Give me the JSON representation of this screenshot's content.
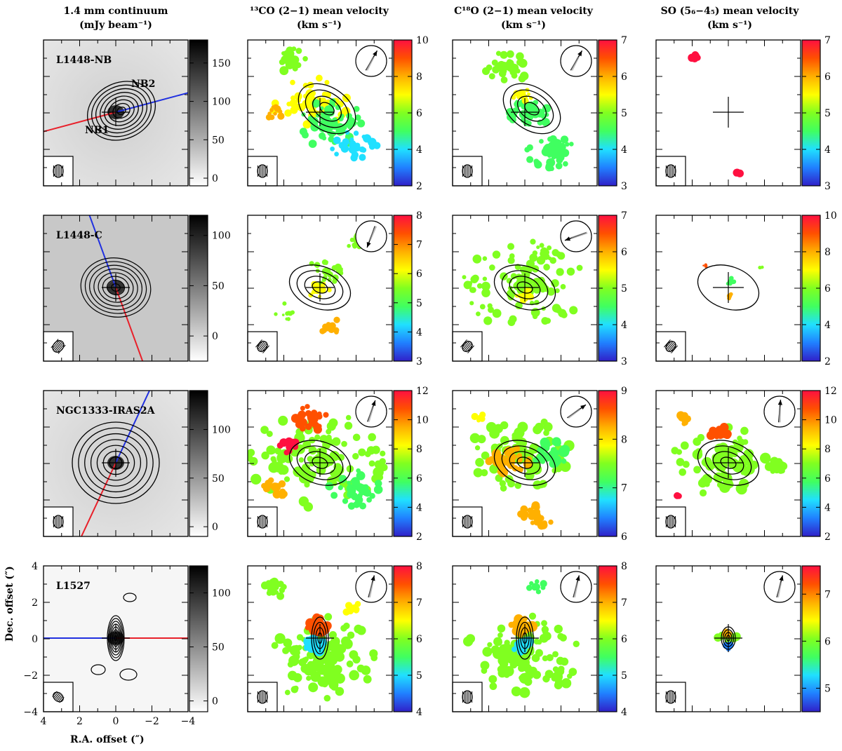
{
  "figure": {
    "column_titles": [
      {
        "line1": "1.4 mm continuum",
        "line2": "(mJy beam⁻¹)"
      },
      {
        "line1": "¹³CO (2−1) mean velocity",
        "line2": "(km s⁻¹)"
      },
      {
        "line1": "C¹⁸O (2−1) mean velocity",
        "line2": "(km s⁻¹)"
      },
      {
        "line1": "SO (5₆−4₅) mean velocity",
        "line2": "(km s⁻¹)"
      }
    ],
    "xlabel": "R.A. offset (″)",
    "ylabel": "Dec. offset (″)",
    "map_ticks": [
      "4",
      "2",
      "0",
      "−2",
      "−4"
    ],
    "sources": [
      {
        "name": "L1448-NB",
        "labels": [
          "NB2",
          "NB1"
        ]
      },
      {
        "name": "L1448-C",
        "labels": []
      },
      {
        "name": "NGC1333-IRAS2A",
        "labels": []
      },
      {
        "name": "L1527",
        "labels": []
      }
    ]
  },
  "colors": {
    "outflow_red": "#e8202a",
    "outflow_blue": "#2030e0",
    "velocity_scale": [
      "#3020c8",
      "#2080ff",
      "#20e0ff",
      "#40ff60",
      "#80ff20",
      "#ffff00",
      "#ffb000",
      "#ff5000",
      "#ff1040"
    ]
  },
  "chart_data": {
    "type": "heatmap",
    "rows": [
      {
        "source": "L1448-NB",
        "continuum_scale": {
          "ticks": [
            "0",
            "50",
            "100",
            "150"
          ],
          "range": [
            -10,
            180
          ]
        },
        "outflow_pa": 255,
        "co13": {
          "ticks": [
            "2",
            "4",
            "6",
            "8",
            "10"
          ],
          "range": [
            2,
            10
          ]
        },
        "c18o": {
          "ticks": [
            "3",
            "4",
            "5",
            "6",
            "7"
          ],
          "range": [
            3,
            7
          ]
        },
        "so": {
          "ticks": [
            "3",
            "4",
            "5",
            "6",
            "7"
          ],
          "range": [
            3,
            7
          ]
        }
      },
      {
        "source": "L1448-C",
        "continuum_scale": {
          "ticks": [
            "0",
            "50",
            "100"
          ],
          "range": [
            -25,
            120
          ]
        },
        "outflow_pa": 160,
        "co13": {
          "ticks": [
            "3",
            "4",
            "5",
            "6",
            "7",
            "8"
          ],
          "range": [
            3,
            8
          ]
        },
        "c18o": {
          "ticks": [
            "3",
            "4",
            "5",
            "6",
            "7"
          ],
          "range": [
            3,
            7
          ]
        },
        "so": {
          "ticks": [
            "2",
            "4",
            "6",
            "8",
            "10"
          ],
          "range": [
            2,
            10
          ]
        }
      },
      {
        "source": "NGC1333-IRAS2A",
        "continuum_scale": {
          "ticks": [
            "0",
            "50",
            "100"
          ],
          "range": [
            -10,
            140
          ]
        },
        "outflow_pa": 205,
        "co13": {
          "ticks": [
            "2",
            "4",
            "6",
            "8",
            "10",
            "12"
          ],
          "range": [
            2,
            12
          ]
        },
        "c18o": {
          "ticks": [
            "6",
            "7",
            "8",
            "9"
          ],
          "range": [
            6,
            9
          ]
        },
        "so": {
          "ticks": [
            "2",
            "4",
            "6",
            "8",
            "10",
            "12"
          ],
          "range": [
            2,
            12
          ]
        }
      },
      {
        "source": "L1527",
        "continuum_scale": {
          "ticks": [
            "0",
            "50",
            "100"
          ],
          "range": [
            -10,
            125
          ]
        },
        "outflow_pa": 90,
        "co13": {
          "ticks": [
            "4",
            "5",
            "6",
            "7",
            "8"
          ],
          "range": [
            4,
            8
          ]
        },
        "c18o": {
          "ticks": [
            "4",
            "5",
            "6",
            "7",
            "8"
          ],
          "range": [
            4,
            8
          ]
        },
        "so": {
          "ticks": [
            "5",
            "6",
            "7"
          ],
          "range": [
            4.5,
            7.6
          ]
        }
      }
    ]
  }
}
